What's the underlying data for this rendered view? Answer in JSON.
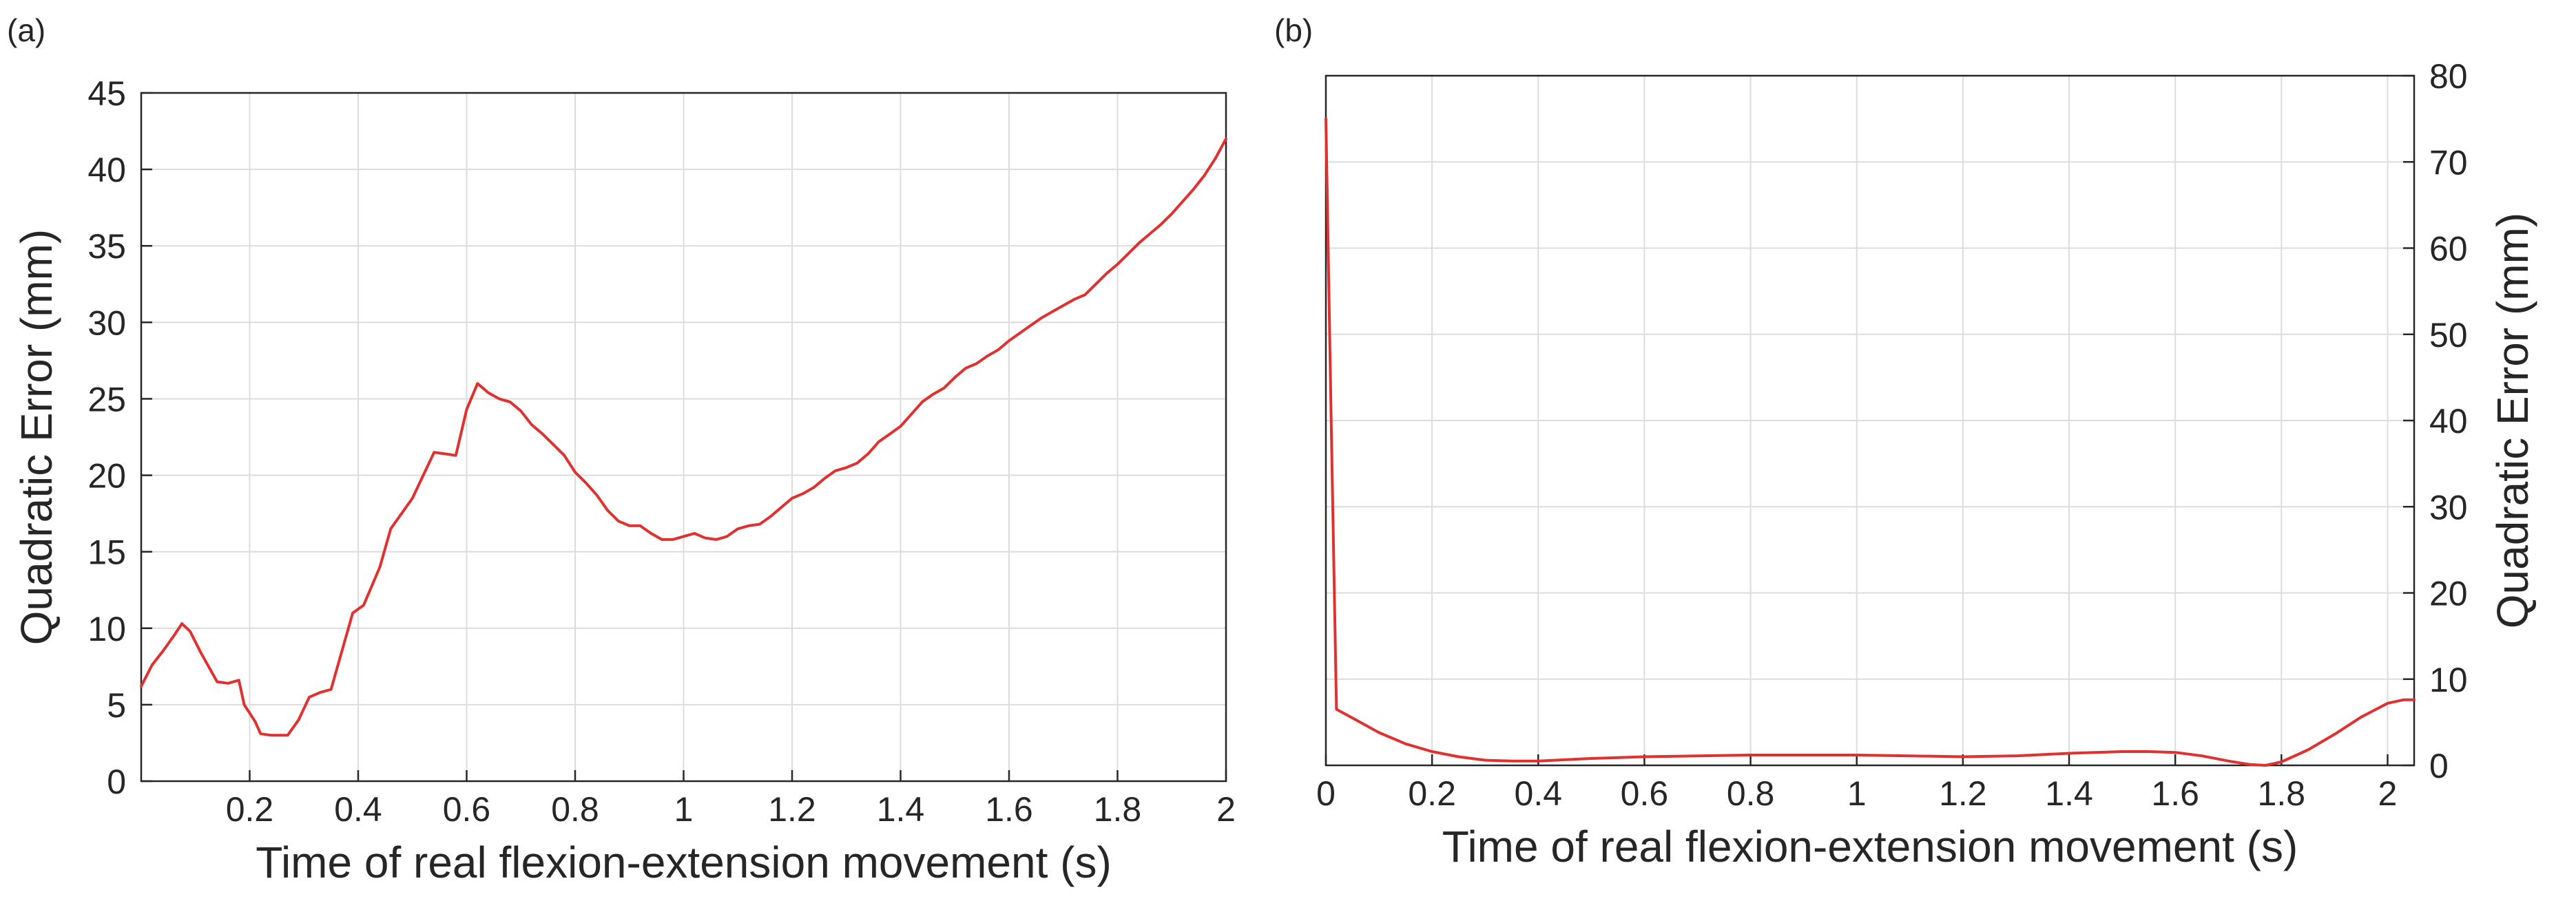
{
  "chart_data": [
    {
      "type": "line",
      "panel_label": "(a)",
      "xlabel": "Time of real flexion-extension movement (s)",
      "ylabel": "Quadratic Error (mm)",
      "xlim": [
        0,
        2
      ],
      "ylim": [
        0,
        45
      ],
      "xticks": [
        0.2,
        0.4,
        0.6,
        0.8,
        1,
        1.2,
        1.4,
        1.6,
        1.8,
        2
      ],
      "xtick_labels": [
        "0.2",
        "0.4",
        "0.6",
        "0.8",
        "1",
        "1.2",
        "1.4",
        "1.6",
        "1.8",
        "2"
      ],
      "yticks": [
        0,
        5,
        10,
        15,
        20,
        25,
        30,
        35,
        40,
        45
      ],
      "ytick_labels": [
        "0",
        "5",
        "10",
        "15",
        "20",
        "25",
        "30",
        "35",
        "40",
        "45"
      ],
      "yaxis_side": "left",
      "grid": true,
      "line_color": "#e03030",
      "series": [
        {
          "x": [
            0,
            0.02,
            0.04,
            0.06,
            0.075,
            0.09,
            0.11,
            0.14,
            0.16,
            0.18,
            0.19,
            0.21,
            0.22,
            0.24,
            0.25,
            0.27,
            0.29,
            0.31,
            0.33,
            0.35,
            0.37,
            0.39,
            0.41,
            0.44,
            0.46,
            0.48,
            0.5,
            0.52,
            0.54,
            0.56,
            0.58,
            0.6,
            0.62,
            0.64,
            0.66,
            0.68,
            0.7,
            0.72,
            0.74,
            0.76,
            0.78,
            0.8,
            0.82,
            0.84,
            0.86,
            0.88,
            0.9,
            0.92,
            0.94,
            0.96,
            0.98,
            1.0,
            1.02,
            1.04,
            1.06,
            1.08,
            1.1,
            1.12,
            1.14,
            1.16,
            1.18,
            1.2,
            1.22,
            1.24,
            1.26,
            1.28,
            1.3,
            1.32,
            1.34,
            1.36,
            1.38,
            1.4,
            1.42,
            1.44,
            1.46,
            1.48,
            1.5,
            1.52,
            1.54,
            1.56,
            1.58,
            1.6,
            1.62,
            1.64,
            1.66,
            1.68,
            1.7,
            1.72,
            1.74,
            1.76,
            1.78,
            1.8,
            1.82,
            1.84,
            1.86,
            1.88,
            1.9,
            1.92,
            1.94,
            1.96,
            1.98,
            2.0
          ],
          "y": [
            6.2,
            7.6,
            8.5,
            9.5,
            10.3,
            9.8,
            8.4,
            6.5,
            6.4,
            6.6,
            5.0,
            3.9,
            3.1,
            3.0,
            3.0,
            3.0,
            4.0,
            5.5,
            5.8,
            6.0,
            8.5,
            11.0,
            11.5,
            14.0,
            16.5,
            17.5,
            18.5,
            20.0,
            21.5,
            21.4,
            21.3,
            24.3,
            26.0,
            25.4,
            25.0,
            24.8,
            24.2,
            23.3,
            22.7,
            22.0,
            21.3,
            20.2,
            19.5,
            18.7,
            17.7,
            17.0,
            16.7,
            16.7,
            16.2,
            15.8,
            15.8,
            16.0,
            16.2,
            15.9,
            15.8,
            16.0,
            16.5,
            16.7,
            16.8,
            17.3,
            17.9,
            18.5,
            18.8,
            19.2,
            19.8,
            20.3,
            20.5,
            20.8,
            21.4,
            22.2,
            22.7,
            23.2,
            24.0,
            24.8,
            25.3,
            25.7,
            26.4,
            27.0,
            27.3,
            27.8,
            28.2,
            28.8,
            29.3,
            29.8,
            30.3,
            30.7,
            31.1,
            31.5,
            31.8,
            32.5,
            33.2,
            33.8,
            34.5,
            35.2,
            35.8,
            36.4,
            37.1,
            37.9,
            38.7,
            39.6,
            40.7,
            42.0
          ]
        }
      ]
    },
    {
      "type": "line",
      "panel_label": "(b)",
      "xlabel": "Time of real flexion-extension movement (s)",
      "ylabel": "Quadratic Error (mm)",
      "xlim": [
        0,
        2.05
      ],
      "ylim": [
        0,
        80
      ],
      "xticks": [
        0,
        0.2,
        0.4,
        0.6,
        0.8,
        1,
        1.2,
        1.4,
        1.6,
        1.8,
        2
      ],
      "xtick_labels": [
        "0",
        "0.2",
        "0.4",
        "0.6",
        "0.8",
        "1",
        "1.2",
        "1.4",
        "1.6",
        "1.8",
        "2"
      ],
      "yticks": [
        0,
        10,
        20,
        30,
        40,
        50,
        60,
        70,
        80
      ],
      "ytick_labels": [
        "0",
        "10",
        "20",
        "30",
        "40",
        "50",
        "60",
        "70",
        "80"
      ],
      "yaxis_side": "right",
      "grid": true,
      "line_color": "#e03030",
      "series": [
        {
          "x": [
            0,
            0.01,
            0.02,
            0.05,
            0.1,
            0.15,
            0.2,
            0.25,
            0.3,
            0.35,
            0.4,
            0.5,
            0.6,
            0.7,
            0.8,
            0.9,
            1.0,
            1.1,
            1.2,
            1.3,
            1.4,
            1.5,
            1.55,
            1.6,
            1.65,
            1.7,
            1.74,
            1.77,
            1.8,
            1.85,
            1.9,
            1.95,
            2.0,
            2.03,
            2.05
          ],
          "y": [
            75,
            40,
            6.5,
            5.5,
            3.8,
            2.5,
            1.6,
            1.0,
            0.6,
            0.5,
            0.5,
            0.8,
            1.0,
            1.1,
            1.2,
            1.2,
            1.2,
            1.1,
            1.0,
            1.1,
            1.4,
            1.6,
            1.6,
            1.5,
            1.1,
            0.5,
            0.1,
            0.0,
            0.4,
            1.8,
            3.6,
            5.6,
            7.2,
            7.6,
            7.6
          ]
        }
      ]
    }
  ]
}
